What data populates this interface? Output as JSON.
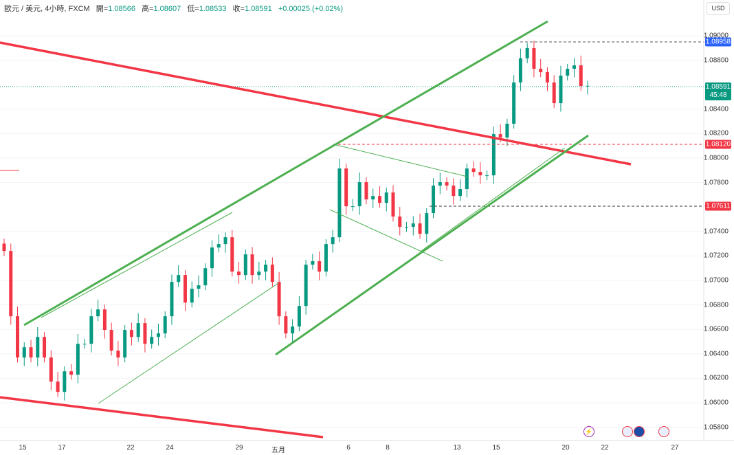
{
  "legend": {
    "symbol": "歐元 / 美元, 4小時, FXCM",
    "open_label": "開=",
    "open": "1.08566",
    "high_label": "高=",
    "high": "1.08607",
    "low_label": "低=",
    "low": "1.08533",
    "close_label": "收=",
    "close": "1.08591",
    "change": "+0.00025 (+0.02%)"
  },
  "currency": "USD",
  "price_axis": [
    "1.09000",
    "1.08800",
    "1.08400",
    "1.08200",
    "1.08000",
    "1.07800",
    "1.07400",
    "1.07200",
    "1.07000",
    "1.06800",
    "1.06600",
    "1.06400",
    "1.06200",
    "1.06000",
    "1.05800"
  ],
  "price_labels": {
    "high_mark": "1.08958",
    "current": "1.08591",
    "countdown": "45:48",
    "resistance": "1.08120",
    "support": "1.07611"
  },
  "time_axis": [
    "15",
    "17",
    "22",
    "24",
    "29",
    "五月",
    "6",
    "8",
    "13",
    "15",
    "20",
    "22",
    "27"
  ],
  "colors": {
    "up": "#089981",
    "down": "#f23645",
    "trend_red": "#f23645",
    "trend_green": "#4caf50",
    "blue": "#2962ff"
  },
  "chart_data": {
    "type": "candlestick",
    "symbol": "EUR/USD 4H",
    "ylim": [
      1.0575,
      1.0915
    ],
    "closes": [
      1.07241,
      1.06707,
      1.0637,
      1.06454,
      1.0637,
      1.06538,
      1.0637,
      1.06173,
      1.06089,
      1.06257,
      1.06229,
      1.06482,
      1.06482,
      1.06707,
      1.06763,
      1.06595,
      1.06426,
      1.0637,
      1.06595,
      1.06538,
      1.06651,
      1.06482,
      1.06538,
      1.06567,
      1.06707,
      1.06988,
      1.07044,
      1.06819,
      1.06932,
      1.0696,
      1.071,
      1.07269,
      1.07297,
      1.07353,
      1.07072,
      1.07044,
      1.07213,
      1.07044,
      1.07072,
      1.07129,
      1.06988,
      1.06707,
      1.06567,
      1.06623,
      1.06791,
      1.07129,
      1.07157,
      1.07072,
      1.07297,
      1.07353,
      1.07915,
      1.07606,
      1.07606,
      1.07803,
      1.07662,
      1.0769,
      1.07634,
      1.07719,
      1.07522,
      1.07438,
      1.07438,
      1.07466,
      1.07381,
      1.0755,
      1.07775,
      1.07803,
      1.07775,
      1.0769,
      1.07747,
      1.07915,
      1.07887,
      1.07859,
      1.07859,
      1.08196,
      1.08168,
      1.08281,
      1.08618,
      1.08815,
      1.08899,
      1.0873,
      1.08702,
      1.08618,
      1.08449,
      1.08674,
      1.0873,
      1.08758,
      1.0859,
      1.08591
    ]
  }
}
